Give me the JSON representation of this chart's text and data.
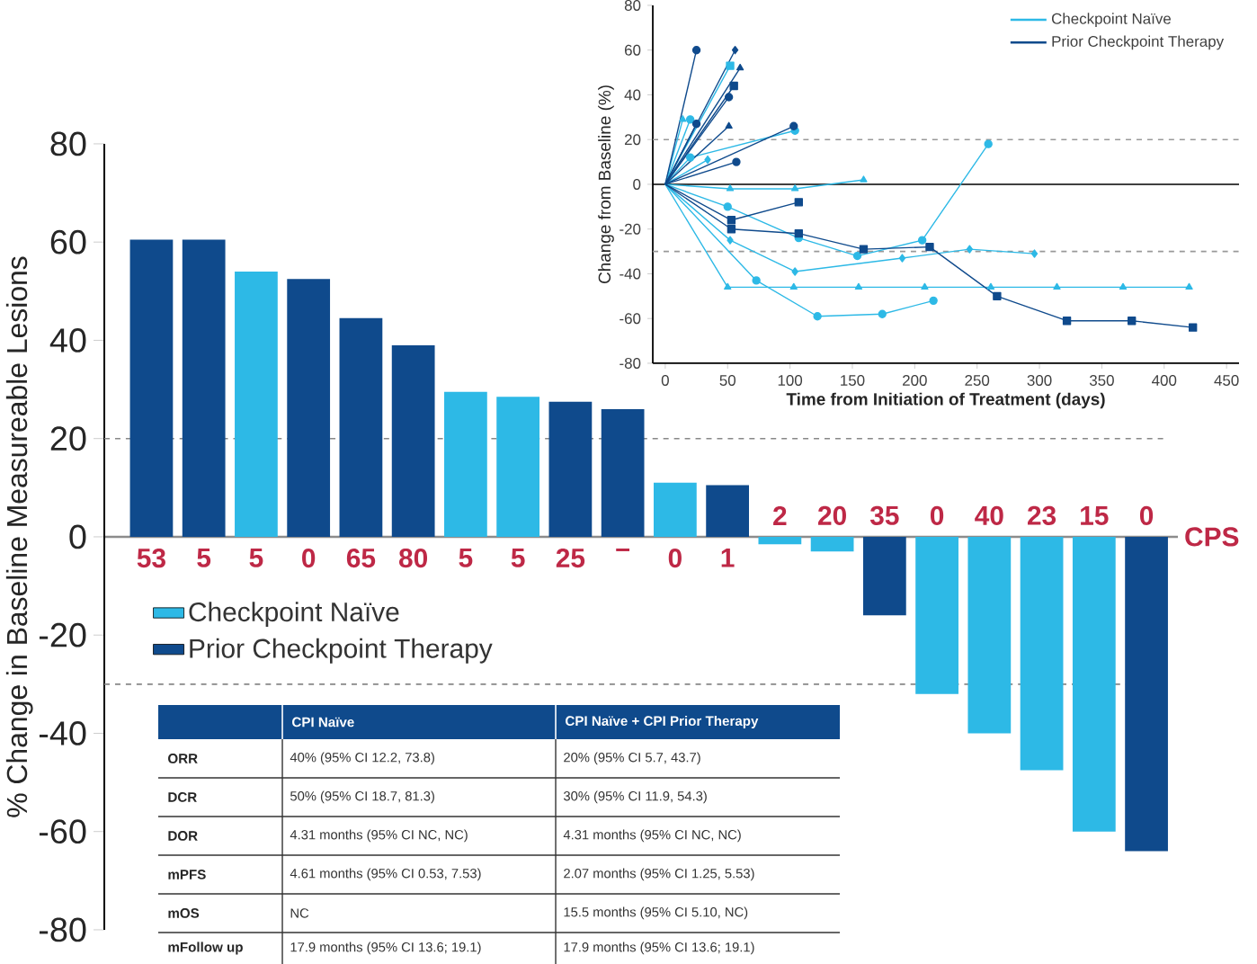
{
  "chart_data": [
    {
      "type": "bar",
      "ylabel": "% Change in Baseline Measureable Lesions",
      "xlabel": "CPS",
      "categories": [
        "53",
        "5",
        "5",
        "0",
        "65",
        "80",
        "5",
        "5",
        "25",
        "–",
        "0",
        "1",
        "2",
        "20",
        "35",
        "0",
        "40",
        "23",
        "15",
        "0"
      ],
      "ylim": [
        -80,
        80
      ],
      "yticks": [
        -80,
        -60,
        -40,
        -20,
        0,
        20,
        40,
        60,
        80
      ],
      "legend": "left",
      "series": [
        {
          "name": "Checkpoint Naïve",
          "color": "#2db9e6",
          "values": [
            null,
            null,
            54,
            null,
            null,
            null,
            29.5,
            28.5,
            null,
            null,
            11,
            null,
            -1.5,
            -3,
            null,
            -32,
            -40,
            -47.5,
            -60,
            null
          ]
        },
        {
          "name": "Prior Checkpoint Therapy",
          "color": "#0f4a8c",
          "values": [
            60.5,
            60.5,
            null,
            52.5,
            44.5,
            39,
            null,
            null,
            27.5,
            26,
            null,
            10.5,
            null,
            null,
            -16,
            null,
            null,
            null,
            null,
            -64
          ]
        }
      ],
      "ref_lines": [
        {
          "axis": "y",
          "value": 20,
          "color": "#888888",
          "line_style": "dashed"
        },
        {
          "axis": "y",
          "value": -30,
          "color": "#888888",
          "line_style": "dashed"
        }
      ]
    },
    {
      "type": "line",
      "xlabel": "Time from Initiation of Treatment (days)",
      "ylabel": "Change from Baseline (%)",
      "xlim": [
        -10,
        460
      ],
      "ylim": [
        -80,
        80
      ],
      "xticks": [
        0,
        50,
        100,
        150,
        200,
        250,
        300,
        350,
        400,
        450
      ],
      "yticks": [
        -80,
        -60,
        -40,
        -20,
        0,
        20,
        40,
        60,
        80
      ],
      "legend": "top right",
      "ref_lines": [
        {
          "axis": "y",
          "value": 20,
          "color": "#999999",
          "line_style": "dashed"
        },
        {
          "axis": "y",
          "value": -30,
          "color": "#999999",
          "line_style": "dashed"
        },
        {
          "axis": "y",
          "value": 0,
          "color": "#000000",
          "line_style": "solid"
        }
      ],
      "series": [
        {
          "name": "Checkpoint Naïve",
          "color": "#2db9e6",
          "marker": "triangle",
          "x": [
            0,
            14
          ],
          "values": [
            0,
            29
          ]
        },
        {
          "color": "#2db9e6",
          "marker": "circle",
          "x": [
            0,
            20
          ],
          "values": [
            0,
            29
          ]
        },
        {
          "color": "#2db9e6",
          "marker": "square",
          "x": [
            0,
            52
          ],
          "values": [
            0,
            53
          ]
        },
        {
          "color": "#2db9e6",
          "marker": "circle",
          "x": [
            0,
            20,
            104
          ],
          "values": [
            0,
            12,
            24
          ]
        },
        {
          "color": "#2db9e6",
          "marker": "diamond",
          "x": [
            0,
            34
          ],
          "values": [
            0,
            11
          ]
        },
        {
          "color": "#2db9e6",
          "marker": "triangle",
          "x": [
            0,
            52,
            104,
            159
          ],
          "values": [
            0,
            -2,
            -2,
            2
          ]
        },
        {
          "color": "#2db9e6",
          "marker": "circle",
          "x": [
            0,
            50,
            107,
            154,
            206,
            259
          ],
          "values": [
            0,
            -10,
            -24,
            -32,
            -25,
            18
          ]
        },
        {
          "color": "#2db9e6",
          "marker": "diamond",
          "x": [
            0,
            52,
            104,
            190,
            244,
            296
          ],
          "values": [
            0,
            -25,
            -39,
            -33,
            -29,
            -31
          ]
        },
        {
          "color": "#2db9e6",
          "marker": "triangle",
          "x": [
            0,
            50,
            103,
            155,
            208,
            261,
            314,
            367,
            420
          ],
          "values": [
            0,
            -46,
            -46,
            -46,
            -46,
            -46,
            -46,
            -46,
            -46
          ]
        },
        {
          "color": "#2db9e6",
          "marker": "circle",
          "x": [
            0,
            73,
            122,
            174,
            215
          ],
          "values": [
            0,
            -43,
            -59,
            -58,
            -52
          ]
        },
        {
          "color": "#0f4a8c",
          "marker": "diamond",
          "x": [
            0,
            56
          ],
          "values": [
            0,
            60
          ]
        },
        {
          "color": "#0f4a8c",
          "marker": "triangle",
          "x": [
            0,
            60
          ],
          "values": [
            0,
            52
          ]
        },
        {
          "color": "#0f4a8c",
          "marker": "square",
          "x": [
            0,
            55
          ],
          "values": [
            0,
            44
          ]
        },
        {
          "color": "#0f4a8c",
          "marker": "circle",
          "x": [
            0,
            51
          ],
          "values": [
            0,
            39
          ]
        },
        {
          "color": "#0f4a8c",
          "marker": "circle",
          "x": [
            0,
            25
          ],
          "values": [
            0,
            27
          ]
        },
        {
          "color": "#0f4a8c",
          "marker": "triangle",
          "x": [
            0,
            51
          ],
          "values": [
            0,
            26
          ]
        },
        {
          "color": "#0f4a8c",
          "marker": "circle",
          "x": [
            0,
            57
          ],
          "values": [
            0,
            10
          ]
        },
        {
          "color": "#0f4a8c",
          "marker": "circle",
          "x": [
            0,
            103
          ],
          "values": [
            0,
            26
          ]
        },
        {
          "color": "#0f4a8c",
          "marker": "square",
          "x": [
            0,
            53,
            107
          ],
          "values": [
            0,
            -16,
            -8
          ]
        },
        {
          "name": "Prior Checkpoint Therapy",
          "color": "#0f4a8c",
          "marker": "square",
          "x": [
            0,
            53,
            107,
            159,
            212,
            266,
            322,
            374,
            423
          ],
          "values": [
            0,
            -20,
            -22,
            -29,
            -28,
            -50,
            -61,
            -61,
            -64
          ]
        },
        {
          "color": "#0f4a8c",
          "marker": "circle",
          "x": [
            0,
            25
          ],
          "values": [
            0,
            60
          ]
        }
      ]
    },
    {
      "type": "other",
      "categories": [
        null,
        "CPI Naïve",
        "CPI Naïve + CPI Prior Therapy"
      ],
      "y_categories": [
        "ORR",
        "DCR",
        "DOR",
        "mPFS",
        "mOS",
        "mFollow up"
      ],
      "cell_labels": [
        [
          "40% (95% CI 12.2, 73.8)",
          "20% (95% CI 5.7, 43.7)"
        ],
        [
          "50% (95% CI 18.7, 81.3)",
          "30% (95% CI 11.9, 54.3)"
        ],
        [
          "4.31 months (95% CI NC, NC)",
          "4.31 months (95% CI NC, NC)"
        ],
        [
          "4.61 months (95% CI 0.53, 7.53)",
          "2.07 months (95% CI 1.25, 5.53)"
        ],
        [
          "NC",
          "15.5 months (95% CI 5.10, NC)"
        ],
        [
          "17.9 months (95% CI 13.6; 19.1)",
          "17.9 months (95% CI 13.6; 19.1)"
        ]
      ]
    }
  ]
}
